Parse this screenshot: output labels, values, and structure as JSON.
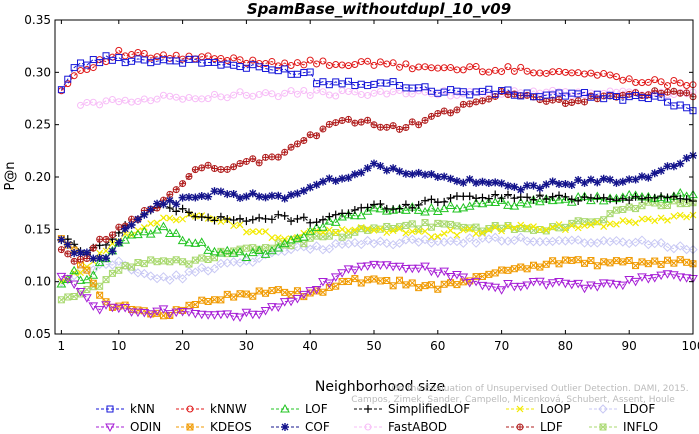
{
  "chart_data": {
    "type": "line",
    "title": "SpamBase_withoutdupl_10_v09",
    "xlabel": "Neighborhood size",
    "ylabel": "P@n",
    "xlim": [
      0,
      100
    ],
    "ylim": [
      0.05,
      0.35
    ],
    "xticks": [
      "1",
      "10",
      "20",
      "30",
      "40",
      "50",
      "60",
      "70",
      "80",
      "90",
      "100"
    ],
    "yticks": [
      "0.05",
      "0.10",
      "0.15",
      "0.20",
      "0.25",
      "0.30",
      "0.35"
    ],
    "grid": false,
    "legend_position": "bottom",
    "watermark": "Campos, Zimek, Sander, Campello, Micenková, Schubert, Assent, Houle",
    "watermark2": "On the Evaluation of Unsupervised Outlier Detection. DAMI, 2015.",
    "series": [
      {
        "name": "kNN",
        "color": "#1515d8",
        "marker": "square",
        "knots": [
          [
            1,
            0.282
          ],
          [
            2,
            0.296
          ],
          [
            3,
            0.305
          ],
          [
            5,
            0.309
          ],
          [
            8,
            0.313
          ],
          [
            12,
            0.312
          ],
          [
            20,
            0.311
          ],
          [
            25,
            0.309
          ],
          [
            30,
            0.305
          ],
          [
            35,
            0.302
          ],
          [
            40,
            0.299
          ],
          [
            41,
            0.291
          ],
          [
            50,
            0.29
          ],
          [
            55,
            0.288
          ],
          [
            60,
            0.282
          ],
          [
            65,
            0.281
          ],
          [
            70,
            0.281
          ],
          [
            75,
            0.278
          ],
          [
            80,
            0.279
          ],
          [
            85,
            0.277
          ],
          [
            90,
            0.276
          ],
          [
            95,
            0.274
          ],
          [
            100,
            0.266
          ]
        ]
      },
      {
        "name": "kNNW",
        "color": "#e01818",
        "marker": "circle",
        "knots": [
          [
            1,
            0.282
          ],
          [
            3,
            0.298
          ],
          [
            5,
            0.305
          ],
          [
            8,
            0.312
          ],
          [
            10,
            0.318
          ],
          [
            15,
            0.315
          ],
          [
            25,
            0.313
          ],
          [
            35,
            0.309
          ],
          [
            50,
            0.308
          ],
          [
            60,
            0.304
          ],
          [
            75,
            0.302
          ],
          [
            85,
            0.298
          ],
          [
            95,
            0.29
          ],
          [
            100,
            0.29
          ]
        ]
      },
      {
        "name": "LOF",
        "color": "#22c422",
        "marker": "triangle-up",
        "knots": [
          [
            1,
            0.098
          ],
          [
            3,
            0.108
          ],
          [
            5,
            0.1
          ],
          [
            7,
            0.118
          ],
          [
            10,
            0.135
          ],
          [
            13,
            0.145
          ],
          [
            17,
            0.15
          ],
          [
            20,
            0.142
          ],
          [
            25,
            0.13
          ],
          [
            30,
            0.125
          ],
          [
            35,
            0.13
          ],
          [
            40,
            0.148
          ],
          [
            45,
            0.16
          ],
          [
            50,
            0.17
          ],
          [
            55,
            0.168
          ],
          [
            60,
            0.17
          ],
          [
            65,
            0.172
          ],
          [
            70,
            0.175
          ],
          [
            75,
            0.175
          ],
          [
            80,
            0.178
          ],
          [
            90,
            0.18
          ],
          [
            95,
            0.182
          ],
          [
            100,
            0.182
          ]
        ]
      },
      {
        "name": "SimplifiedLOF",
        "color": "#000000",
        "marker": "plus",
        "knots": [
          [
            1,
            0.141
          ],
          [
            3,
            0.135
          ],
          [
            5,
            0.128
          ],
          [
            7,
            0.133
          ],
          [
            10,
            0.148
          ],
          [
            13,
            0.16
          ],
          [
            16,
            0.172
          ],
          [
            20,
            0.168
          ],
          [
            25,
            0.16
          ],
          [
            30,
            0.158
          ],
          [
            35,
            0.162
          ],
          [
            40,
            0.158
          ],
          [
            45,
            0.165
          ],
          [
            50,
            0.172
          ],
          [
            55,
            0.172
          ],
          [
            60,
            0.178
          ],
          [
            65,
            0.182
          ],
          [
            70,
            0.181
          ],
          [
            80,
            0.18
          ],
          [
            90,
            0.18
          ],
          [
            100,
            0.18
          ]
        ]
      },
      {
        "name": "LoOP",
        "color": "#f2ea00",
        "marker": "x",
        "knots": [
          [
            1,
            0.098
          ],
          [
            4,
            0.11
          ],
          [
            7,
            0.128
          ],
          [
            10,
            0.14
          ],
          [
            14,
            0.152
          ],
          [
            18,
            0.16
          ],
          [
            22,
            0.165
          ],
          [
            26,
            0.16
          ],
          [
            30,
            0.15
          ],
          [
            35,
            0.142
          ],
          [
            40,
            0.145
          ],
          [
            45,
            0.15
          ],
          [
            50,
            0.15
          ],
          [
            55,
            0.148
          ],
          [
            60,
            0.145
          ],
          [
            65,
            0.148
          ],
          [
            70,
            0.15
          ],
          [
            75,
            0.152
          ],
          [
            80,
            0.152
          ],
          [
            85,
            0.155
          ],
          [
            90,
            0.158
          ],
          [
            95,
            0.16
          ],
          [
            100,
            0.165
          ]
        ]
      },
      {
        "name": "LDOF",
        "color": "#c8c8f4",
        "marker": "diamond",
        "knots": [
          [
            1,
            0.098
          ],
          [
            4,
            0.108
          ],
          [
            7,
            0.115
          ],
          [
            10,
            0.118
          ],
          [
            13,
            0.11
          ],
          [
            16,
            0.102
          ],
          [
            20,
            0.105
          ],
          [
            25,
            0.115
          ],
          [
            30,
            0.12
          ],
          [
            35,
            0.128
          ],
          [
            40,
            0.132
          ],
          [
            45,
            0.135
          ],
          [
            50,
            0.138
          ],
          [
            55,
            0.138
          ],
          [
            60,
            0.138
          ],
          [
            70,
            0.14
          ],
          [
            80,
            0.14
          ],
          [
            90,
            0.138
          ],
          [
            95,
            0.136
          ],
          [
            100,
            0.132
          ]
        ]
      },
      {
        "name": "ODIN",
        "color": "#a61ed6",
        "marker": "triangle-down",
        "knots": [
          [
            1,
            0.105
          ],
          [
            3,
            0.1
          ],
          [
            5,
            0.082
          ],
          [
            7,
            0.076
          ],
          [
            10,
            0.075
          ],
          [
            15,
            0.072
          ],
          [
            20,
            0.072
          ],
          [
            25,
            0.07
          ],
          [
            30,
            0.068
          ],
          [
            35,
            0.075
          ],
          [
            40,
            0.09
          ],
          [
            45,
            0.108
          ],
          [
            50,
            0.118
          ],
          [
            55,
            0.115
          ],
          [
            60,
            0.11
          ],
          [
            65,
            0.102
          ],
          [
            70,
            0.095
          ],
          [
            75,
            0.1
          ],
          [
            80,
            0.098
          ],
          [
            85,
            0.095
          ],
          [
            90,
            0.1
          ],
          [
            95,
            0.105
          ],
          [
            100,
            0.104
          ]
        ]
      },
      {
        "name": "KDEOS",
        "color": "#f09a00",
        "marker": "square-x",
        "knots": [
          [
            1,
            0.141
          ],
          [
            3,
            0.128
          ],
          [
            5,
            0.11
          ],
          [
            7,
            0.085
          ],
          [
            9,
            0.076
          ],
          [
            12,
            0.074
          ],
          [
            15,
            0.072
          ],
          [
            18,
            0.068
          ],
          [
            22,
            0.08
          ],
          [
            26,
            0.085
          ],
          [
            30,
            0.088
          ],
          [
            35,
            0.09
          ],
          [
            40,
            0.088
          ],
          [
            43,
            0.092
          ],
          [
            45,
            0.1
          ],
          [
            50,
            0.1
          ],
          [
            55,
            0.098
          ],
          [
            60,
            0.095
          ],
          [
            65,
            0.1
          ],
          [
            70,
            0.112
          ],
          [
            75,
            0.115
          ],
          [
            80,
            0.12
          ],
          [
            85,
            0.118
          ],
          [
            90,
            0.118
          ],
          [
            95,
            0.118
          ],
          [
            100,
            0.118
          ]
        ]
      },
      {
        "name": "COF",
        "color": "#14148c",
        "marker": "star",
        "knots": [
          [
            1,
            0.14
          ],
          [
            3,
            0.13
          ],
          [
            5,
            0.125
          ],
          [
            7,
            0.12
          ],
          [
            9,
            0.13
          ],
          [
            11,
            0.15
          ],
          [
            13,
            0.162
          ],
          [
            16,
            0.172
          ],
          [
            20,
            0.178
          ],
          [
            25,
            0.185
          ],
          [
            30,
            0.182
          ],
          [
            35,
            0.18
          ],
          [
            40,
            0.19
          ],
          [
            45,
            0.2
          ],
          [
            50,
            0.21
          ],
          [
            55,
            0.205
          ],
          [
            60,
            0.2
          ],
          [
            65,
            0.195
          ],
          [
            70,
            0.192
          ],
          [
            75,
            0.19
          ],
          [
            80,
            0.195
          ],
          [
            85,
            0.195
          ],
          [
            90,
            0.198
          ],
          [
            95,
            0.205
          ],
          [
            100,
            0.218
          ]
        ]
      },
      {
        "name": "FastABOD",
        "color": "#f7bcf7",
        "marker": "circle",
        "knots": [
          [
            4,
            0.268
          ],
          [
            8,
            0.272
          ],
          [
            15,
            0.275
          ],
          [
            25,
            0.278
          ],
          [
            40,
            0.28
          ],
          [
            60,
            0.28
          ],
          [
            80,
            0.28
          ],
          [
            100,
            0.28
          ]
        ]
      },
      {
        "name": "LDF",
        "color": "#b01c1c",
        "marker": "circle-plus",
        "knots": [
          [
            1,
            0.13
          ],
          [
            3,
            0.118
          ],
          [
            5,
            0.122
          ],
          [
            7,
            0.138
          ],
          [
            10,
            0.15
          ],
          [
            13,
            0.162
          ],
          [
            16,
            0.172
          ],
          [
            19,
            0.19
          ],
          [
            22,
            0.205
          ],
          [
            25,
            0.21
          ],
          [
            28,
            0.21
          ],
          [
            31,
            0.215
          ],
          [
            35,
            0.22
          ],
          [
            38,
            0.232
          ],
          [
            42,
            0.245
          ],
          [
            46,
            0.255
          ],
          [
            50,
            0.25
          ],
          [
            55,
            0.248
          ],
          [
            60,
            0.26
          ],
          [
            65,
            0.268
          ],
          [
            70,
            0.28
          ],
          [
            75,
            0.275
          ],
          [
            80,
            0.272
          ],
          [
            85,
            0.275
          ],
          [
            90,
            0.278
          ],
          [
            95,
            0.28
          ],
          [
            100,
            0.278
          ]
        ]
      },
      {
        "name": "INFLO",
        "color": "#a8d86e",
        "marker": "square-x",
        "knots": [
          [
            1,
            0.082
          ],
          [
            3,
            0.085
          ],
          [
            5,
            0.09
          ],
          [
            7,
            0.098
          ],
          [
            10,
            0.11
          ],
          [
            13,
            0.12
          ],
          [
            16,
            0.12
          ],
          [
            20,
            0.118
          ],
          [
            25,
            0.125
          ],
          [
            30,
            0.13
          ],
          [
            35,
            0.135
          ],
          [
            40,
            0.14
          ],
          [
            45,
            0.145
          ],
          [
            50,
            0.15
          ],
          [
            55,
            0.152
          ],
          [
            60,
            0.155
          ],
          [
            65,
            0.15
          ],
          [
            70,
            0.152
          ],
          [
            75,
            0.15
          ],
          [
            80,
            0.152
          ],
          [
            85,
            0.16
          ],
          [
            90,
            0.17
          ],
          [
            95,
            0.175
          ],
          [
            100,
            0.175
          ]
        ]
      }
    ]
  }
}
